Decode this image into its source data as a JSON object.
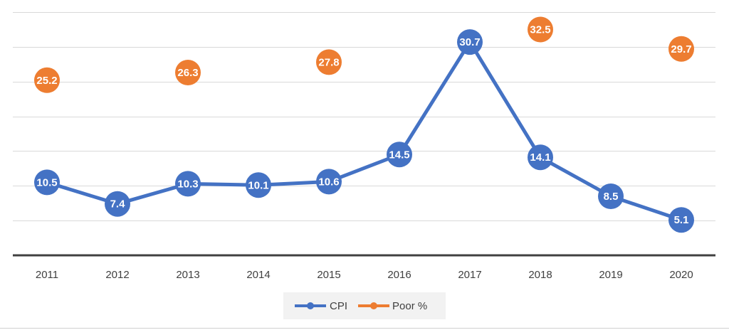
{
  "chart_data": {
    "type": "line",
    "categories": [
      "2011",
      "2012",
      "2013",
      "2014",
      "2015",
      "2016",
      "2017",
      "2018",
      "2019",
      "2020"
    ],
    "series": [
      {
        "name": "CPI",
        "values": [
          10.5,
          7.4,
          10.3,
          10.1,
          10.6,
          14.5,
          30.7,
          14.1,
          8.5,
          5.1
        ],
        "labels": [
          "10.5",
          "7.4",
          "10.3",
          "10.1",
          "10.6",
          "14.5",
          "30.7",
          "14.1",
          "8.5",
          "5.1"
        ],
        "color": "#4472c4",
        "style": "line-with-markers"
      },
      {
        "name": "Poor %",
        "values": [
          25.2,
          null,
          26.3,
          null,
          27.8,
          null,
          null,
          32.5,
          null,
          29.7
        ],
        "labels": [
          "25.2",
          "",
          "26.3",
          "",
          "27.8",
          "",
          "",
          "32.5",
          "",
          "29.7"
        ],
        "color": "#ed7d31",
        "style": "markers-only"
      }
    ],
    "title": "",
    "xlabel": "",
    "ylabel": "",
    "ylim": [
      0,
      35
    ],
    "y_axis_labels": "hidden",
    "grid": true,
    "legend_position": "bottom"
  }
}
